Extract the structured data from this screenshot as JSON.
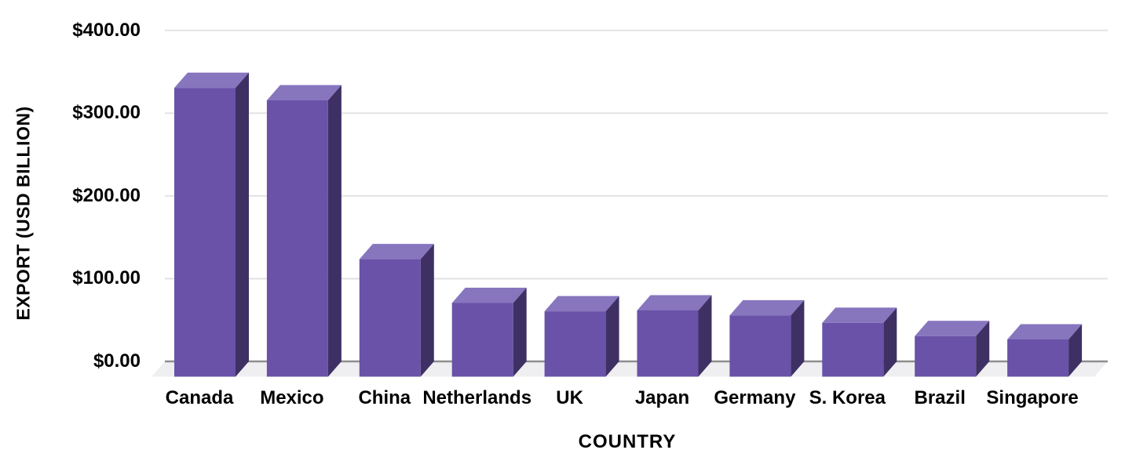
{
  "chart_data": {
    "type": "bar",
    "variant": "3d-column",
    "xlabel": "COUNTRY",
    "ylabel": "EXPORT (USD BILLION)",
    "categories": [
      "Canada",
      "Mexico",
      "China",
      "Netherlands",
      "UK",
      "Japan",
      "Germany",
      "S. Korea",
      "Brazil",
      "Singapore"
    ],
    "values": [
      349,
      334,
      142,
      89,
      79,
      80,
      74,
      65,
      49,
      45
    ],
    "value_unit": "USD billion",
    "ytick_labels": [
      "$400.00",
      "$300.00",
      "$200.00",
      "$100.00",
      "$0.00"
    ],
    "yticks": [
      400,
      300,
      200,
      100,
      0
    ],
    "ylim": [
      0,
      400
    ],
    "grid": true,
    "legend": false,
    "colors": {
      "bar_front": "#6952A8",
      "bar_top": "#8776BE",
      "bar_side": "#3F3064",
      "floor": "#EFEFF1",
      "gridline": "#E2E2E6",
      "baseline": "#8E8E8E",
      "text": "#000000",
      "background": "#FFFFFF"
    }
  }
}
